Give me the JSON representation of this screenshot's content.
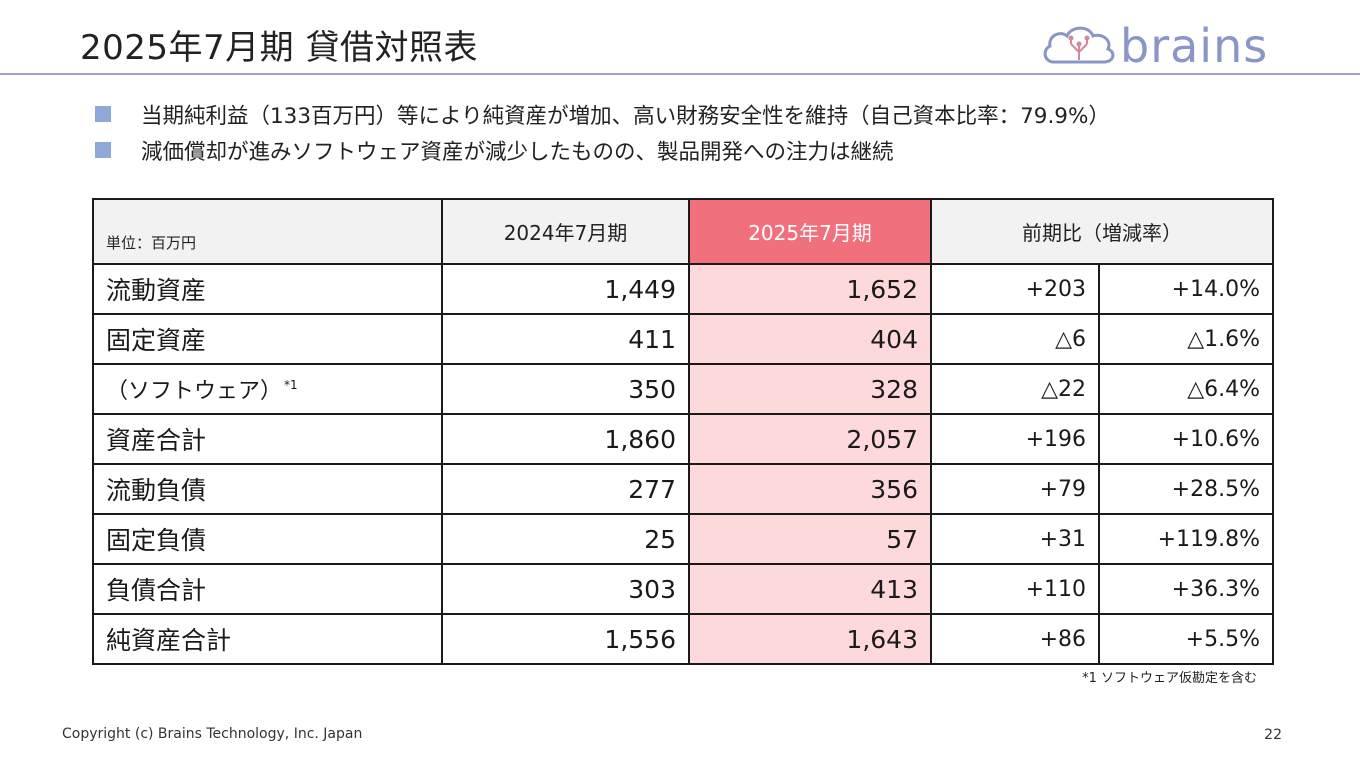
{
  "title": "2025年7月期 貸借対照表",
  "logo": {
    "text": "brains"
  },
  "bullets": [
    "当期純利益（133百万円）等により純資産が増加、高い財務安全性を維持（自己資本比率：79.9%）",
    "減価償却が進みソフトウェア資産が減少したものの、製品開発への注力は継続"
  ],
  "table": {
    "unit": "単位：百万円",
    "col_prev": "2024年7月期",
    "col_curr": "2025年7月期",
    "col_diff": "前期比（増減率）",
    "rows": [
      {
        "label": "流動資産",
        "prev": "1,449",
        "curr": "1,652",
        "diff": "+203",
        "rate": "+14.0%"
      },
      {
        "label": "固定資産",
        "prev": "411",
        "curr": "404",
        "diff": "△6",
        "rate": "△1.6%"
      },
      {
        "label": "（ソフトウェア）",
        "note": "*1",
        "prev": "350",
        "curr": "328",
        "diff": "△22",
        "rate": "△6.4%"
      },
      {
        "label": "資産合計",
        "prev": "1,860",
        "curr": "2,057",
        "diff": "+196",
        "rate": "+10.6%"
      },
      {
        "label": "流動負債",
        "prev": "277",
        "curr": "356",
        "diff": "+79",
        "rate": "+28.5%"
      },
      {
        "label": "固定負債",
        "prev": "25",
        "curr": "57",
        "diff": "+31",
        "rate": "+119.8%"
      },
      {
        "label": "負債合計",
        "prev": "303",
        "curr": "413",
        "diff": "+110",
        "rate": "+36.3%"
      },
      {
        "label": "純資産合計",
        "prev": "1,556",
        "curr": "1,643",
        "diff": "+86",
        "rate": "+5.5%"
      }
    ]
  },
  "footnote": "*1 ソフトウェア仮勘定を含む",
  "copyright": "Copyright (c) Brains Technology, Inc. Japan",
  "page_number": "22",
  "colors": {
    "accent": "#9aa3cf",
    "bullet": "#8fa8d8",
    "highlight_header": "#f0707e",
    "highlight_cell": "#fdd9dc"
  }
}
